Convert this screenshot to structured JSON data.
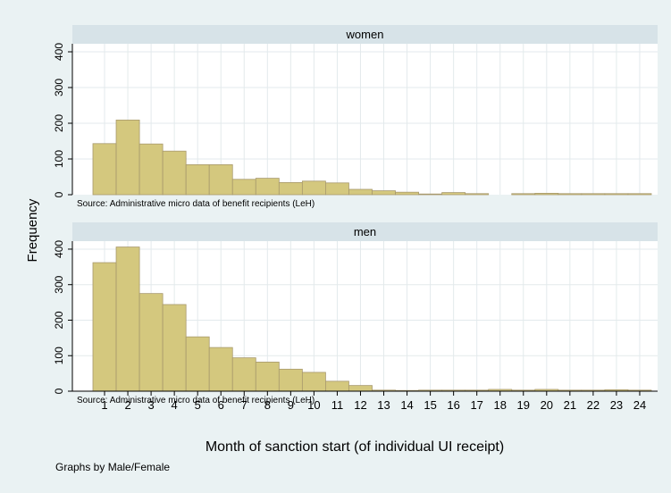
{
  "chart_data": {
    "type": "bar",
    "ylabel": "Frequency",
    "xlabel": "Month of sanction start (of individual UI receipt)",
    "note": "Graphs by Male/Female",
    "ylim": [
      0,
      420
    ],
    "yticks": [
      0,
      100,
      200,
      300,
      400
    ],
    "categories": [
      "1",
      "2",
      "3",
      "4",
      "5",
      "6",
      "7",
      "8",
      "9",
      "10",
      "11",
      "12",
      "13",
      "14",
      "15",
      "16",
      "17",
      "18",
      "19",
      "20",
      "21",
      "22",
      "23",
      "24"
    ],
    "grid": true,
    "panels": [
      {
        "title": "women",
        "source": "Source: Administrative micro data of benefit recipients (LeH)",
        "values": [
          143,
          209,
          142,
          122,
          84,
          84,
          43,
          46,
          34,
          38,
          33,
          15,
          11,
          7,
          2,
          6,
          3,
          0,
          3,
          4,
          3,
          3,
          3,
          3
        ]
      },
      {
        "title": "men",
        "source": "Source: Administrative micro data of benefit recipients (LeH)",
        "values": [
          362,
          406,
          275,
          244,
          153,
          123,
          94,
          82,
          62,
          53,
          28,
          16,
          3,
          2,
          3,
          3,
          3,
          5,
          3,
          5,
          3,
          3,
          4,
          3
        ]
      }
    ],
    "colors": {
      "bar_fill": "#d4c87e",
      "bar_stroke": "#a8996d",
      "background": "#eaf2f3",
      "plot_bg": "#ffffff",
      "strip_bg": "#d7e3e8",
      "grid": "#e3eaec"
    }
  }
}
